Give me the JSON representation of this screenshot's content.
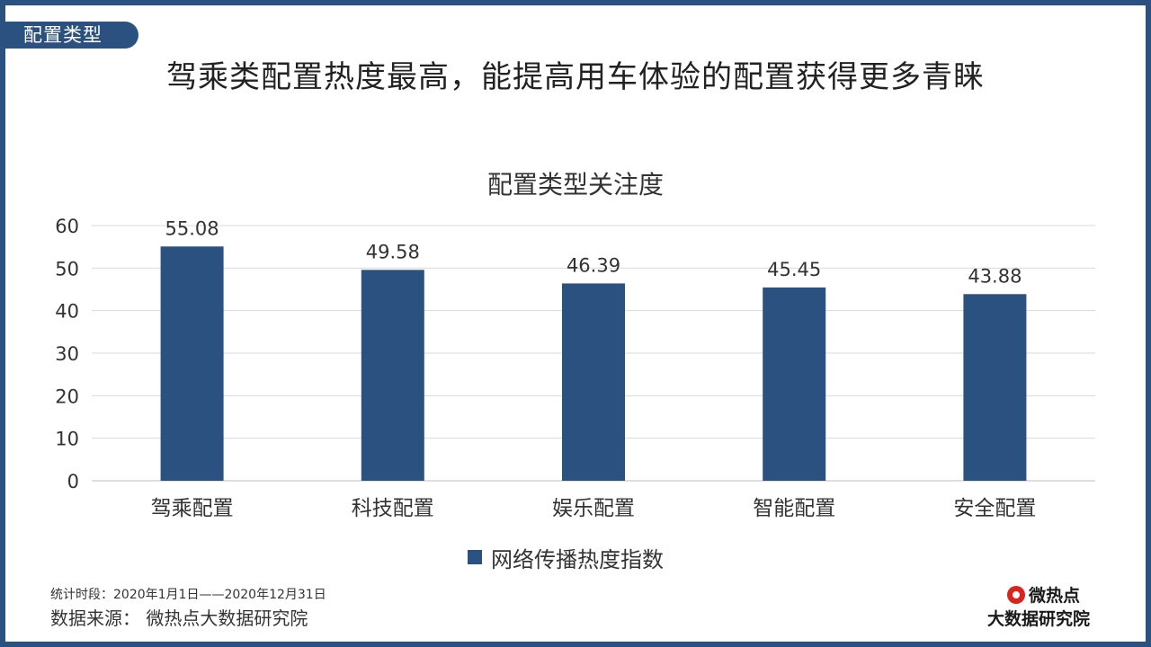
{
  "section_tag": "配置类型",
  "main_title": "驾乘类配置热度最高，能提高用车体验的配置获得更多青睐",
  "chart_data": {
    "type": "bar",
    "title": "配置类型关注度",
    "categories": [
      "驾乘配置",
      "科技配置",
      "娱乐配置",
      "智能配置",
      "安全配置"
    ],
    "series": [
      {
        "name": "网络传播热度指数",
        "values": [
          55.08,
          49.58,
          46.39,
          45.45,
          43.88
        ]
      }
    ],
    "data_labels": [
      "55.08",
      "49.58",
      "46.39",
      "45.45",
      "43.88"
    ],
    "ylim": [
      0,
      60
    ],
    "yticks": [
      0,
      10,
      20,
      30,
      40,
      50,
      60
    ],
    "grid": true,
    "legend_position": "bottom",
    "bar_color": "#2b5180"
  },
  "footer": {
    "period": "统计时段：2020年1月1日——2020年12月31日",
    "source": "数据来源：  微热点大数据研究院"
  },
  "logo": {
    "top": "微热点",
    "bottom": "大数据研究院",
    "icon": "eye-icon"
  }
}
